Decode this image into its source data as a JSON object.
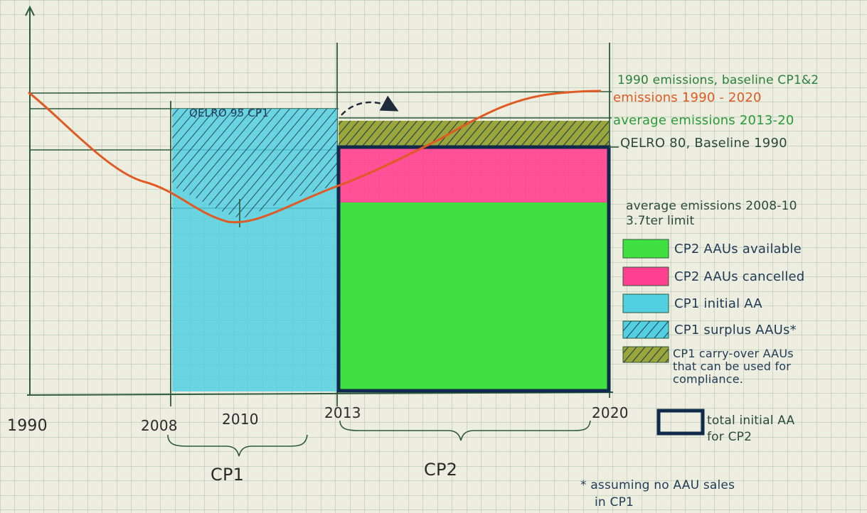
{
  "palette": {
    "paper": "#eeeee0",
    "grid": "#9fb6a6",
    "axis": "#2f5a3b",
    "emissions_line": "#e05a23",
    "cp2_available": "#3fe03f",
    "cp2_cancelled": "#ff3f8f",
    "cp1_initial": "#52cfe0",
    "hatch": "#1f3a55",
    "carryover": "#8a9a3a",
    "navy": "#0f2a4a",
    "green_text": "#2a7f3a",
    "orange_text": "#e05a23",
    "ink": "#2a2a2a"
  },
  "x_axis": {
    "labels": [
      "1990",
      "2008",
      "2010",
      "2013",
      "2020"
    ]
  },
  "periods": [
    {
      "label": "CP1"
    },
    {
      "label": "CP2"
    }
  ],
  "annotations": {
    "qelro95": "QELRO 95 CP1",
    "baseline_1990": "1990 emissions, baseline CP1&2",
    "emissions_1990_2020": "emissions 1990 - 2020",
    "avg_2013_20": "average emissions 2013-20",
    "qelro80": "QELRO 80, Baseline 1990",
    "avg_2008_10_line1": "average emissions 2008-10",
    "avg_2008_10_line2": "3.7ter limit"
  },
  "legend": [
    {
      "label": "CP2 AAUs available",
      "swatch": "cp2-available"
    },
    {
      "label": "CP2 AAUs cancelled",
      "swatch": "cp2-cancelled"
    },
    {
      "label": "CP1 initial AA",
      "swatch": "cp1-initial"
    },
    {
      "label": "CP1 surplus AAUs*",
      "swatch": "cp1-surplus"
    },
    {
      "label_line1": "CP1 carry-over AAUs",
      "label_line2": "that can be used for",
      "label_line3": "compliance.",
      "swatch": "carryover"
    }
  ],
  "total_legend": {
    "line1": "total initial AA",
    "line2": "for CP2"
  },
  "footnote": {
    "line1": "* assuming no AAU sales",
    "line2": "in CP1"
  }
}
